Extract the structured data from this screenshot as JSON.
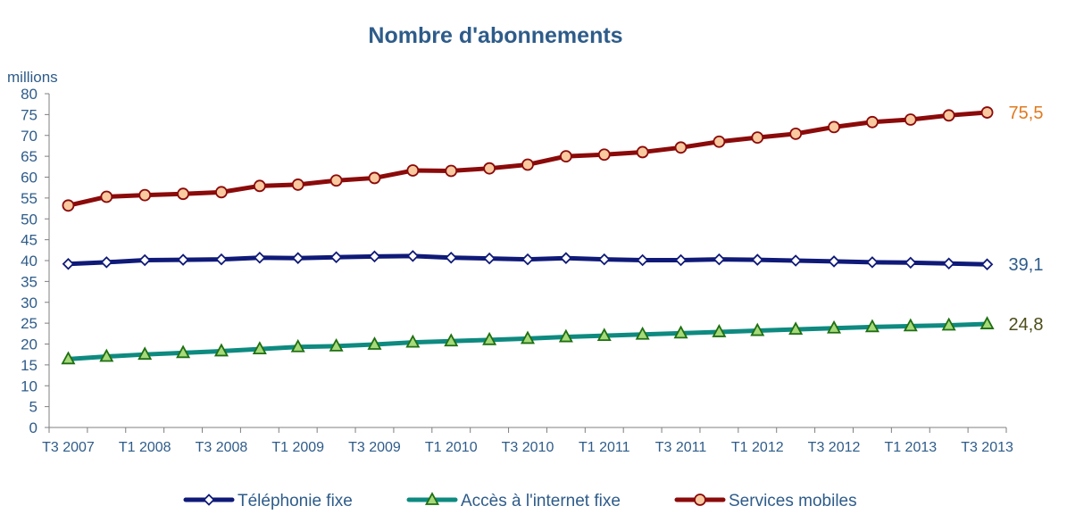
{
  "chart_data": {
    "type": "line",
    "title": "Nombre d'abonnements",
    "ylabel": "millions",
    "ylim": [
      0,
      80
    ],
    "yticks": [
      0,
      5,
      10,
      15,
      20,
      25,
      30,
      35,
      40,
      45,
      50,
      55,
      60,
      65,
      70,
      75,
      80
    ],
    "x": [
      "T3 2007",
      "T4 2007",
      "T1 2008",
      "T2 2008",
      "T3 2008",
      "T4 2008",
      "T1 2009",
      "T2 2009",
      "T3 2009",
      "T4 2009",
      "T1 2010",
      "T2 2010",
      "T3 2010",
      "T4 2010",
      "T1 2011",
      "T2 2011",
      "T3 2011",
      "T4 2011",
      "T1 2012",
      "T2 2012",
      "T3 2012",
      "T4 2012",
      "T1 2013",
      "T2 2013",
      "T3 2013"
    ],
    "xtick_labels": [
      "T3 2007",
      "T1 2008",
      "T3 2008",
      "T1 2009",
      "T3 2009",
      "T1 2010",
      "T3 2010",
      "T1 2011",
      "T3 2011",
      "T1 2012",
      "T3 2012",
      "T1 2013",
      "T3 2013"
    ],
    "grid": false,
    "legend_position": "bottom",
    "series": [
      {
        "name": "Téléphonie fixe",
        "color": "#0F1A78",
        "marker": "diamond",
        "end_label": "39,1",
        "end_label_color": "#2E5C8A",
        "values": [
          39.2,
          39.6,
          40.1,
          40.2,
          40.3,
          40.7,
          40.6,
          40.8,
          41.0,
          41.1,
          40.7,
          40.5,
          40.3,
          40.6,
          40.3,
          40.1,
          40.1,
          40.3,
          40.2,
          40.0,
          39.8,
          39.6,
          39.5,
          39.3,
          39.1
        ]
      },
      {
        "name": "Accès à l'internet fixe",
        "color": "#0E8A80",
        "marker": "triangle",
        "end_label": "24,8",
        "end_label_color": "#4D4D1A",
        "values": [
          16.4,
          17.0,
          17.5,
          17.9,
          18.3,
          18.8,
          19.3,
          19.5,
          19.9,
          20.4,
          20.7,
          21.0,
          21.3,
          21.7,
          22.0,
          22.3,
          22.6,
          22.9,
          23.2,
          23.5,
          23.8,
          24.1,
          24.3,
          24.5,
          24.8
        ]
      },
      {
        "name": "Services mobiles",
        "color": "#8B0A0A",
        "marker": "circle",
        "end_label": "75,5",
        "end_label_color": "#E07A1F",
        "values": [
          53.2,
          55.3,
          55.7,
          56.0,
          56.4,
          57.9,
          58.2,
          59.2,
          59.8,
          61.6,
          61.5,
          62.1,
          63.0,
          65.0,
          65.4,
          66.0,
          67.1,
          68.5,
          69.5,
          70.4,
          72.0,
          73.2,
          73.8,
          74.8,
          75.5
        ]
      }
    ]
  }
}
